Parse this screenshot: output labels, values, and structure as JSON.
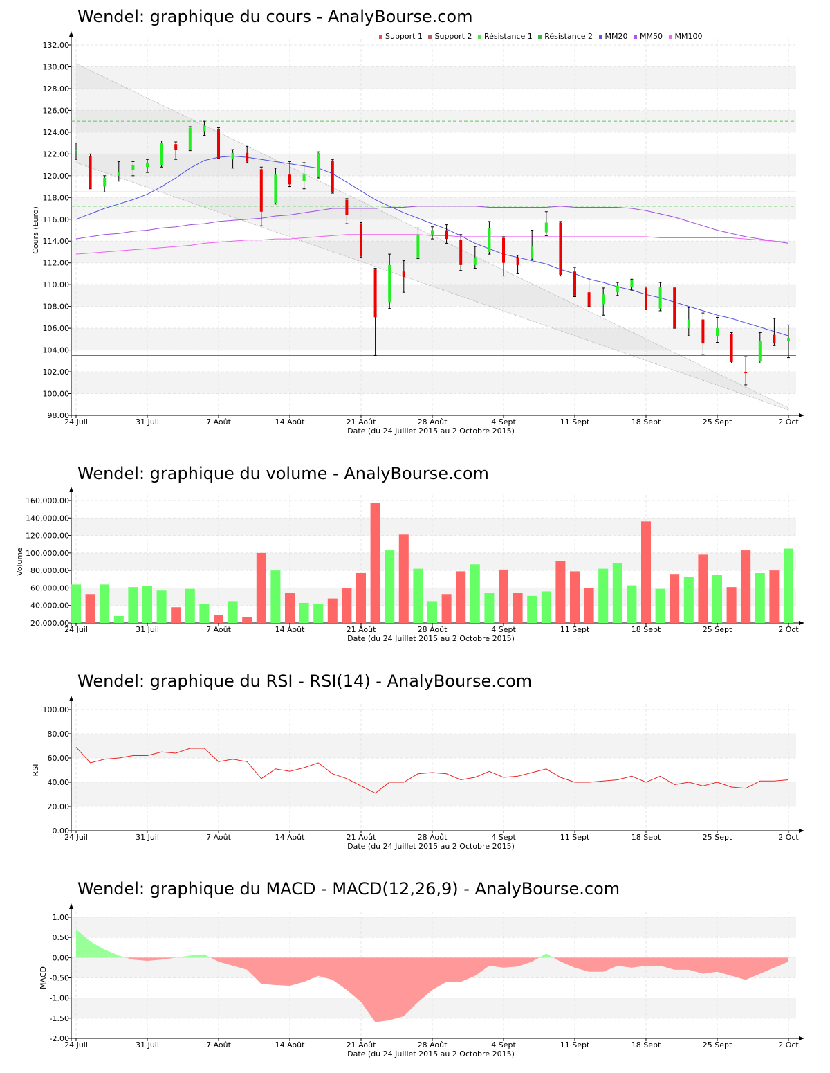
{
  "x_axis": {
    "tick_labels": [
      "24 Juil",
      "31 Juil",
      "7 Août",
      "14 Août",
      "21 Août",
      "28 Août",
      "4 Sept",
      "11 Sept",
      "18 Sept",
      "25 Sept",
      "2 Oct"
    ],
    "label": "Date (du 24 Juillet 2015 au 2 Octobre 2015)"
  },
  "titles": {
    "price": "Wendel: graphique du cours - AnalyBourse.com",
    "volume": "Wendel: graphique du volume - AnalyBourse.com",
    "rsi": "Wendel: graphique du RSI - RSI(14) - AnalyBourse.com",
    "macd": "Wendel: graphique du MACD - MACD(12,26,9) - AnalyBourse.com"
  },
  "legend": [
    {
      "label": "Support 1",
      "color": "#e05050"
    },
    {
      "label": "Support 2",
      "color": "#b06060"
    },
    {
      "label": "Résistance 1",
      "color": "#55dd55"
    },
    {
      "label": "Résistance 2",
      "color": "#40b040"
    },
    {
      "label": "MM20",
      "color": "#5555ee"
    },
    {
      "label": "MM50",
      "color": "#aa55ee"
    },
    {
      "label": "MM100",
      "color": "#ee66ee"
    }
  ],
  "chart_data": [
    {
      "type": "candlestick",
      "title": "Wendel: graphique du cours - AnalyBourse.com",
      "ylabel": "Cours (Euro)",
      "xlabel": "Date (du 24 Juillet 2015 au 2 Octobre 2015)",
      "ylim": [
        98,
        132
      ],
      "ytick_labels": [
        "98.00",
        "100.00",
        "102.00",
        "104.00",
        "106.00",
        "108.00",
        "110.00",
        "112.00",
        "114.00",
        "116.00",
        "118.00",
        "120.00",
        "122.00",
        "124.00",
        "126.00",
        "128.00",
        "130.00",
        "132.00"
      ],
      "candles": [
        {
          "o": 122.4,
          "h": 123.0,
          "l": 121.5,
          "c": 122.4
        },
        {
          "o": 121.8,
          "h": 122.0,
          "l": 118.8,
          "c": 118.8
        },
        {
          "o": 119.0,
          "h": 120.0,
          "l": 118.5,
          "c": 119.8
        },
        {
          "o": 120.0,
          "h": 121.3,
          "l": 119.5,
          "c": 120.3
        },
        {
          "o": 120.5,
          "h": 121.3,
          "l": 120.0,
          "c": 121.0
        },
        {
          "o": 120.8,
          "h": 121.5,
          "l": 120.3,
          "c": 121.2
        },
        {
          "o": 121.0,
          "h": 123.2,
          "l": 120.8,
          "c": 123.0
        },
        {
          "o": 122.9,
          "h": 123.1,
          "l": 121.5,
          "c": 122.4
        },
        {
          "o": 122.4,
          "h": 124.5,
          "l": 122.3,
          "c": 124.4
        },
        {
          "o": 124.1,
          "h": 125.0,
          "l": 123.7,
          "c": 124.6
        },
        {
          "o": 124.3,
          "h": 124.4,
          "l": 121.6,
          "c": 121.6
        },
        {
          "o": 121.5,
          "h": 122.4,
          "l": 120.7,
          "c": 122.1
        },
        {
          "o": 122.1,
          "h": 122.7,
          "l": 121.2,
          "c": 121.3
        },
        {
          "o": 120.6,
          "h": 120.8,
          "l": 115.4,
          "c": 116.7
        },
        {
          "o": 117.5,
          "h": 120.7,
          "l": 117.4,
          "c": 120.1
        },
        {
          "o": 120.1,
          "h": 121.3,
          "l": 119.0,
          "c": 119.2
        },
        {
          "o": 119.5,
          "h": 121.2,
          "l": 118.8,
          "c": 120.1
        },
        {
          "o": 119.9,
          "h": 122.2,
          "l": 119.8,
          "c": 122.1
        },
        {
          "o": 121.4,
          "h": 121.5,
          "l": 118.4,
          "c": 118.5
        },
        {
          "o": 117.8,
          "h": 117.9,
          "l": 115.6,
          "c": 116.4
        },
        {
          "o": 115.6,
          "h": 115.7,
          "l": 112.5,
          "c": 112.6
        },
        {
          "o": 111.4,
          "h": 111.5,
          "l": 103.5,
          "c": 107.0
        },
        {
          "o": 108.4,
          "h": 112.8,
          "l": 107.8,
          "c": 111.8
        },
        {
          "o": 111.2,
          "h": 112.2,
          "l": 109.3,
          "c": 110.7
        },
        {
          "o": 112.5,
          "h": 115.2,
          "l": 112.4,
          "c": 114.6
        },
        {
          "o": 114.6,
          "h": 115.3,
          "l": 114.2,
          "c": 115.0
        },
        {
          "o": 115.0,
          "h": 115.5,
          "l": 113.8,
          "c": 114.2
        },
        {
          "o": 114.1,
          "h": 114.6,
          "l": 111.3,
          "c": 111.8
        },
        {
          "o": 111.8,
          "h": 113.5,
          "l": 111.5,
          "c": 112.5
        },
        {
          "o": 113.0,
          "h": 115.8,
          "l": 112.8,
          "c": 115.2
        },
        {
          "o": 114.3,
          "h": 114.4,
          "l": 110.8,
          "c": 112.0
        },
        {
          "o": 112.5,
          "h": 112.7,
          "l": 111.0,
          "c": 111.8
        },
        {
          "o": 112.4,
          "h": 115.0,
          "l": 112.3,
          "c": 113.5
        },
        {
          "o": 114.8,
          "h": 116.7,
          "l": 114.5,
          "c": 115.7
        },
        {
          "o": 115.7,
          "h": 115.8,
          "l": 110.8,
          "c": 110.9
        },
        {
          "o": 111.2,
          "h": 111.6,
          "l": 108.9,
          "c": 109.0
        },
        {
          "o": 109.3,
          "h": 110.6,
          "l": 108.0,
          "c": 108.0
        },
        {
          "o": 108.2,
          "h": 109.7,
          "l": 107.2,
          "c": 109.1
        },
        {
          "o": 109.3,
          "h": 110.2,
          "l": 109.0,
          "c": 109.9
        },
        {
          "o": 109.8,
          "h": 110.5,
          "l": 109.5,
          "c": 110.4
        },
        {
          "o": 109.7,
          "h": 109.8,
          "l": 107.7,
          "c": 107.7
        },
        {
          "o": 107.8,
          "h": 110.2,
          "l": 107.6,
          "c": 109.8
        },
        {
          "o": 109.7,
          "h": 109.7,
          "l": 106.0,
          "c": 106.0
        },
        {
          "o": 106.0,
          "h": 107.9,
          "l": 105.3,
          "c": 106.8
        },
        {
          "o": 106.8,
          "h": 107.4,
          "l": 103.6,
          "c": 104.6
        },
        {
          "o": 105.3,
          "h": 107.0,
          "l": 104.7,
          "c": 106.0
        },
        {
          "o": 105.5,
          "h": 105.6,
          "l": 102.8,
          "c": 102.9
        },
        {
          "o": 102.0,
          "h": 103.4,
          "l": 100.8,
          "c": 101.9
        },
        {
          "o": 103.0,
          "h": 105.6,
          "l": 102.8,
          "c": 104.8
        },
        {
          "o": 105.4,
          "h": 106.9,
          "l": 104.4,
          "c": 104.6
        },
        {
          "o": 104.8,
          "h": 106.3,
          "l": 103.3,
          "c": 105.1
        }
      ],
      "support_1": 118.5,
      "support_2": 103.5,
      "resistance_1": 125.0,
      "resistance_2": 117.2,
      "channel": {
        "upper": [
          130.3,
          98.7
        ],
        "lower": [
          121.2,
          98.5
        ]
      },
      "series": [
        {
          "name": "MM20",
          "color": "#5050e0",
          "values": [
            116.0,
            116.5,
            117.0,
            117.4,
            117.8,
            118.3,
            119.0,
            119.8,
            120.7,
            121.4,
            121.7,
            121.8,
            121.7,
            121.5,
            121.3,
            121.1,
            120.9,
            120.7,
            120.2,
            119.4,
            118.6,
            117.8,
            117.2,
            116.6,
            116.1,
            115.6,
            115.1,
            114.5,
            113.8,
            113.3,
            112.8,
            112.5,
            112.2,
            111.9,
            111.4,
            111.0,
            110.5,
            110.2,
            109.8,
            109.5,
            109.1,
            108.8,
            108.4,
            108.0,
            107.6,
            107.2,
            106.9,
            106.5,
            106.1,
            105.7,
            105.3
          ]
        },
        {
          "name": "MM50",
          "color": "#a050e0",
          "values": [
            114.2,
            114.4,
            114.6,
            114.7,
            114.9,
            115.0,
            115.2,
            115.3,
            115.5,
            115.6,
            115.8,
            115.9,
            116.0,
            116.1,
            116.3,
            116.4,
            116.6,
            116.8,
            117.0,
            117.0,
            117.0,
            117.0,
            117.1,
            117.1,
            117.2,
            117.2,
            117.2,
            117.2,
            117.2,
            117.1,
            117.1,
            117.1,
            117.1,
            117.1,
            117.2,
            117.1,
            117.1,
            117.1,
            117.1,
            117.0,
            116.8,
            116.5,
            116.2,
            115.8,
            115.4,
            115.0,
            114.7,
            114.4,
            114.2,
            114.0,
            113.8
          ]
        },
        {
          "name": "MM100",
          "color": "#ee60ee",
          "values": [
            112.8,
            112.9,
            113.0,
            113.1,
            113.2,
            113.3,
            113.4,
            113.5,
            113.6,
            113.8,
            113.9,
            114.0,
            114.1,
            114.1,
            114.2,
            114.2,
            114.3,
            114.4,
            114.5,
            114.6,
            114.6,
            114.6,
            114.6,
            114.6,
            114.6,
            114.5,
            114.5,
            114.4,
            114.4,
            114.4,
            114.4,
            114.4,
            114.4,
            114.4,
            114.4,
            114.4,
            114.4,
            114.4,
            114.4,
            114.4,
            114.4,
            114.3,
            114.3,
            114.3,
            114.3,
            114.3,
            114.3,
            114.2,
            114.1,
            114.0,
            113.9
          ]
        }
      ]
    },
    {
      "type": "bar",
      "title": "Wendel: graphique du volume - AnalyBourse.com",
      "ylabel": "Volume",
      "xlabel": "Date (du 24 Juillet 2015 au 2 Octobre 2015)",
      "ylim": [
        20000,
        160000
      ],
      "ytick_labels": [
        "20,000.00",
        "40,000.00",
        "60,000.00",
        "80,000.00",
        "100,000.00",
        "120,000.00",
        "140,000.00",
        "160,000.00"
      ],
      "values": [
        64000,
        53000,
        64000,
        28000,
        61000,
        62000,
        57000,
        38000,
        59000,
        42000,
        29000,
        45000,
        27000,
        100000,
        80000,
        54000,
        43000,
        42000,
        48000,
        60000,
        77000,
        157000,
        103000,
        121000,
        82000,
        45000,
        53000,
        79000,
        87000,
        54000,
        81000,
        54000,
        51000,
        56000,
        91000,
        79000,
        60000,
        82000,
        88000,
        63000,
        136000,
        59000,
        76000,
        73000,
        98000,
        75000,
        61000,
        103000,
        77000,
        80000,
        105000
      ],
      "up": [
        true,
        false,
        true,
        true,
        true,
        true,
        true,
        false,
        true,
        true,
        false,
        true,
        false,
        false,
        true,
        false,
        true,
        true,
        false,
        false,
        false,
        false,
        true,
        false,
        true,
        true,
        false,
        false,
        true,
        true,
        false,
        false,
        true,
        true,
        false,
        false,
        false,
        true,
        true,
        true,
        false,
        true,
        false,
        true,
        false,
        true,
        false,
        false,
        true,
        false,
        true
      ]
    },
    {
      "type": "line",
      "title": "Wendel: graphique du RSI - RSI(14) - AnalyBourse.com",
      "ylabel": "RSI",
      "xlabel": "Date (du 24 Juillet 2015 au 2 Octobre 2015)",
      "ylim": [
        0,
        100
      ],
      "ytick_labels": [
        "0.00",
        "20.00",
        "40.00",
        "60.00",
        "80.00",
        "100.00"
      ],
      "reference_line": 50,
      "series": [
        {
          "name": "RSI",
          "color": "#ee2222",
          "values": [
            69,
            56,
            59,
            60,
            62,
            62,
            65,
            64,
            68,
            68,
            57,
            59,
            57,
            43,
            51,
            49,
            52,
            56,
            47,
            43,
            37,
            31,
            40,
            40,
            47,
            48,
            47,
            42,
            44,
            49,
            44,
            45,
            48,
            51,
            44,
            40,
            40,
            41,
            42,
            45,
            40,
            45,
            38,
            40,
            37,
            40,
            36,
            35,
            41,
            41,
            42
          ]
        }
      ]
    },
    {
      "type": "area",
      "title": "Wendel: graphique du MACD - MACD(12,26,9) - AnalyBourse.com",
      "ylabel": "MACD",
      "xlabel": "Date (du 24 Juillet 2015 au 2 Octobre 2015)",
      "ylim": [
        -2.0,
        1.0
      ],
      "ytick_labels": [
        "-2.00",
        "-1.50",
        "-1.00",
        "-0.50",
        "0.00",
        "0.50",
        "1.00"
      ],
      "series": [
        {
          "name": "MACD",
          "values": [
            0.7,
            0.4,
            0.2,
            0.05,
            -0.05,
            -0.08,
            -0.05,
            0.0,
            0.05,
            0.08,
            -0.1,
            -0.2,
            -0.3,
            -0.65,
            -0.68,
            -0.7,
            -0.6,
            -0.45,
            -0.55,
            -0.8,
            -1.1,
            -1.6,
            -1.55,
            -1.45,
            -1.1,
            -0.8,
            -0.6,
            -0.6,
            -0.45,
            -0.2,
            -0.25,
            -0.22,
            -0.1,
            0.1,
            -0.1,
            -0.25,
            -0.35,
            -0.35,
            -0.2,
            -0.25,
            -0.2,
            -0.2,
            -0.3,
            -0.3,
            -0.4,
            -0.35,
            -0.45,
            -0.55,
            -0.4,
            -0.25,
            -0.1
          ]
        }
      ]
    }
  ]
}
